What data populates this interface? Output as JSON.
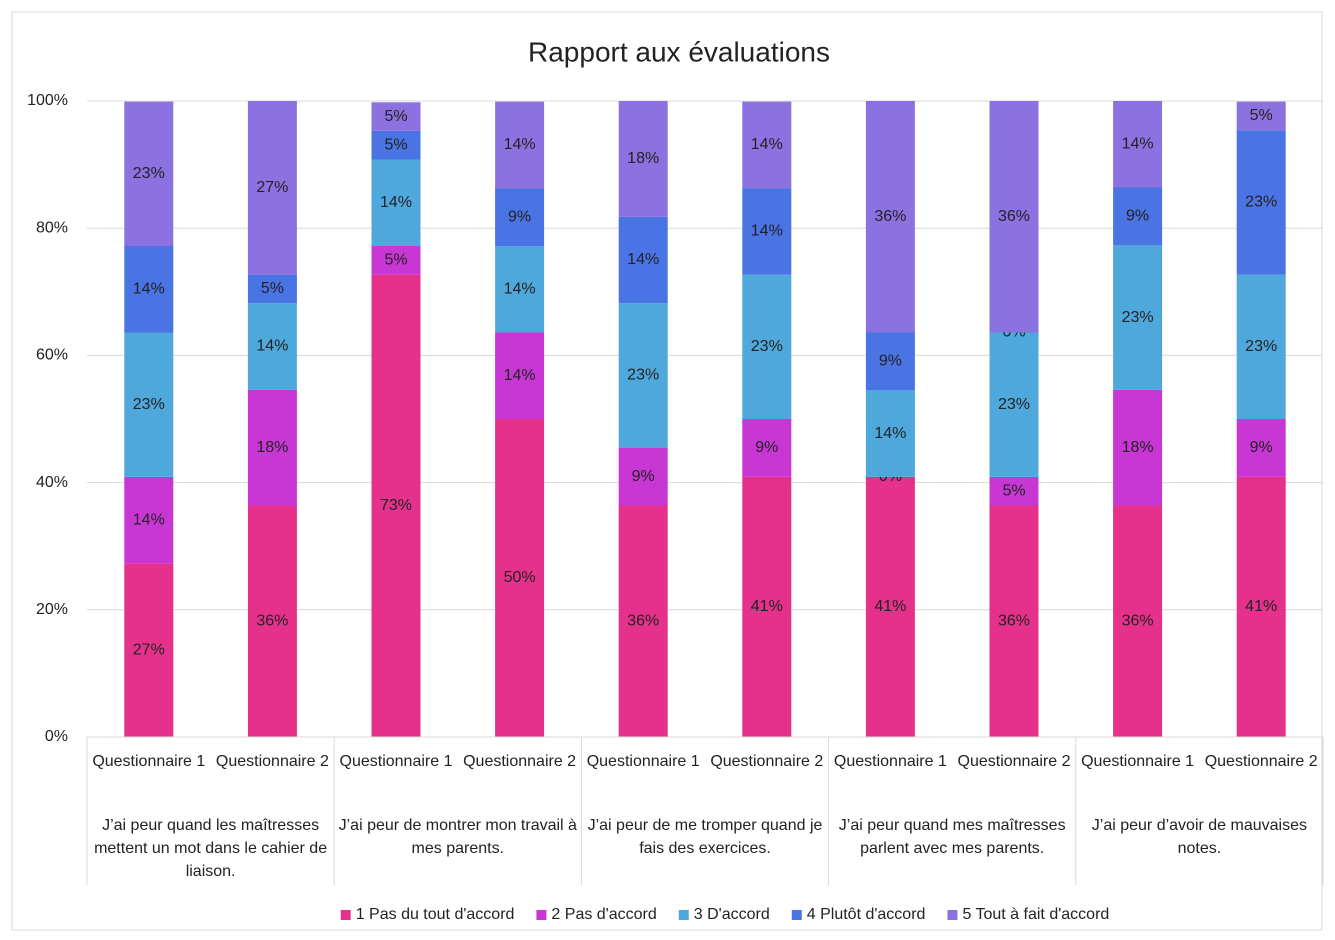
{
  "chart_data": {
    "type": "stacked_bar_100",
    "title": "Rapport aux évaluations",
    "categories": [
      "Questionnaire 1",
      "Questionnaire 2",
      "Questionnaire 1",
      "Questionnaire 2",
      "Questionnaire 1",
      "Questionnaire 2",
      "Questionnaire 1",
      "Questionnaire 2",
      "Questionnaire 1",
      "Questionnaire 2"
    ],
    "groups": [
      {
        "label": "J’ai peur quand les maîtresses mettent un mot dans le cahier de liaison.",
        "size": 2
      },
      {
        "label": "J’ai peur de montrer mon travail à mes parents.",
        "size": 2
      },
      {
        "label": "J’ai peur de me tromper quand je fais des exercices.",
        "size": 2
      },
      {
        "label": "J’ai peur quand mes maîtresses parlent avec mes parents.",
        "size": 2
      },
      {
        "label": "J’ai peur d’avoir de mauvaises notes.",
        "size": 2
      }
    ],
    "series": [
      {
        "name": "1 Pas du tout d'accord",
        "color": "#e6318c",
        "values": [
          27.3,
          36.4,
          72.7,
          50,
          36.4,
          40.9,
          40.9,
          36.4,
          36.4,
          40.9
        ],
        "value_labels": [
          "27%",
          "36%",
          "73%",
          "50%",
          "36%",
          "41%",
          "41%",
          "36%",
          "36%",
          "41%"
        ]
      },
      {
        "name": "2 Pas d'accord",
        "color": "#c837d4",
        "values": [
          13.6,
          18.2,
          4.5,
          13.6,
          9.1,
          9.1,
          0,
          4.5,
          18.2,
          9.1
        ],
        "value_labels": [
          "14%",
          "18%",
          "5%",
          "14%",
          "9%",
          "9%",
          "0%",
          "5%",
          "18%",
          "9%"
        ]
      },
      {
        "name": "3 D'accord",
        "color": "#4fa8dc",
        "values": [
          22.7,
          13.6,
          13.6,
          13.6,
          22.7,
          22.7,
          13.6,
          22.7,
          22.7,
          22.7
        ],
        "value_labels": [
          "23%",
          "14%",
          "14%",
          "14%",
          "23%",
          "23%",
          "14%",
          "23%",
          "23%",
          "23%"
        ]
      },
      {
        "name": "4 Plutôt d'accord",
        "color": "#4a73e3",
        "values": [
          13.6,
          4.5,
          4.5,
          9.1,
          13.6,
          13.6,
          9.1,
          0,
          9.1,
          22.7
        ],
        "value_labels": [
          "14%",
          "5%",
          "5%",
          "9%",
          "14%",
          "14%",
          "9%",
          "0%",
          "9%",
          "23%"
        ]
      },
      {
        "name": "5 Tout à fait d'accord",
        "color": "#8b72e0",
        "values": [
          22.7,
          27.3,
          4.5,
          13.6,
          18.2,
          13.6,
          36.4,
          36.4,
          13.6,
          4.5
        ],
        "value_labels": [
          "23%",
          "27%",
          "5%",
          "14%",
          "18%",
          "14%",
          "36%",
          "36%",
          "14%",
          "5%"
        ]
      }
    ],
    "ylim": [
      0,
      100
    ],
    "yticks": [
      {
        "value": 0,
        "label": "0%"
      },
      {
        "value": 20,
        "label": "20%"
      },
      {
        "value": 40,
        "label": "40%"
      },
      {
        "value": 60,
        "label": "60%"
      },
      {
        "value": 80,
        "label": "80%"
      },
      {
        "value": 100,
        "label": "100%"
      }
    ],
    "grid": true,
    "legend": "bottom"
  }
}
